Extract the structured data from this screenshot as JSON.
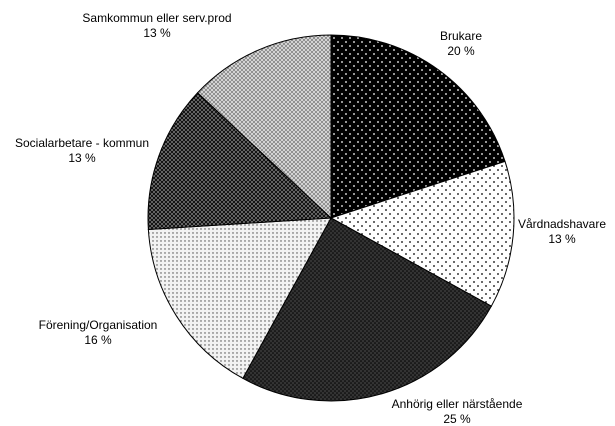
{
  "chart_data": {
    "type": "pie",
    "categories": [
      "Brukare",
      "Vårdnadshavare",
      "Anhörig eller närstående",
      "Förening/Organisation",
      "Socialarbetare - kommun",
      "Samkommun eller serv.prod"
    ],
    "values": [
      20,
      13,
      25,
      16,
      13,
      13
    ],
    "value_labels": [
      "20 %",
      "13 %",
      "25 %",
      "16 %",
      "13 %",
      "13 %"
    ],
    "colors": [
      "#000000",
      "#ffffff",
      "#333333",
      "#f2f2f2",
      "#777777",
      "#dddddd"
    ]
  }
}
